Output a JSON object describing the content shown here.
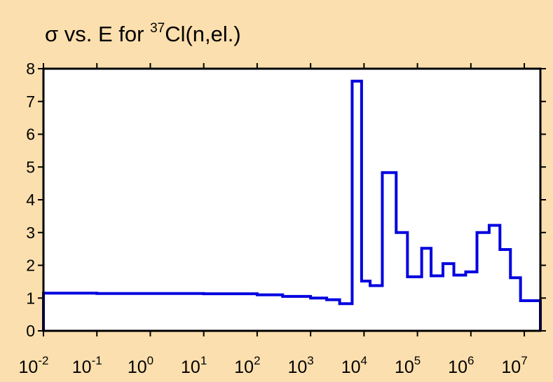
{
  "chart_data": {
    "type": "line",
    "title": {
      "prefix": "σ vs. E for ",
      "superscript": "37",
      "suffix": "Cl(n,el.)"
    },
    "xlabel": "",
    "ylabel": "",
    "x_scale": "log",
    "xlim": [
      0.01,
      20000000
    ],
    "ylim": [
      0,
      8
    ],
    "y_ticks": [
      "0",
      "1",
      "2",
      "3",
      "4",
      "5",
      "6",
      "7",
      "8"
    ],
    "x_ticks": [
      {
        "base": "10",
        "exp": "-2"
      },
      {
        "base": "10",
        "exp": "-1"
      },
      {
        "base": "10",
        "exp": "0"
      },
      {
        "base": "10",
        "exp": "1"
      },
      {
        "base": "10",
        "exp": "2"
      },
      {
        "base": "10",
        "exp": "3"
      },
      {
        "base": "10",
        "exp": "4"
      },
      {
        "base": "10",
        "exp": "5"
      },
      {
        "base": "10",
        "exp": "6"
      },
      {
        "base": "10",
        "exp": "7"
      }
    ],
    "grid": false,
    "series": [
      {
        "style": "step",
        "color": "#0000E0",
        "steps": [
          {
            "x0": 0.01,
            "x1": 0.1,
            "y": 1.15
          },
          {
            "x0": 0.1,
            "x1": 1,
            "y": 1.14
          },
          {
            "x0": 1,
            "x1": 10,
            "y": 1.14
          },
          {
            "x0": 10,
            "x1": 100,
            "y": 1.13
          },
          {
            "x0": 100,
            "x1": 300,
            "y": 1.1
          },
          {
            "x0": 300,
            "x1": 1000,
            "y": 1.05
          },
          {
            "x0": 1000,
            "x1": 2000,
            "y": 1.0
          },
          {
            "x0": 2000,
            "x1": 3500,
            "y": 0.95
          },
          {
            "x0": 3500,
            "x1": 6000,
            "y": 0.83
          },
          {
            "x0": 6000,
            "x1": 9000,
            "y": 7.62
          },
          {
            "x0": 9000,
            "x1": 13000,
            "y": 1.52
          },
          {
            "x0": 13000,
            "x1": 22000,
            "y": 1.38
          },
          {
            "x0": 22000,
            "x1": 40000,
            "y": 4.83
          },
          {
            "x0": 40000,
            "x1": 65000,
            "y": 3.0
          },
          {
            "x0": 65000,
            "x1": 120000,
            "y": 1.65
          },
          {
            "x0": 120000,
            "x1": 180000,
            "y": 2.52
          },
          {
            "x0": 180000,
            "x1": 300000,
            "y": 1.68
          },
          {
            "x0": 300000,
            "x1": 480000,
            "y": 2.05
          },
          {
            "x0": 480000,
            "x1": 800000,
            "y": 1.7
          },
          {
            "x0": 800000,
            "x1": 1300000,
            "y": 1.8
          },
          {
            "x0": 1300000,
            "x1": 2200000,
            "y": 3.0
          },
          {
            "x0": 2200000,
            "x1": 3500000,
            "y": 3.22
          },
          {
            "x0": 3500000,
            "x1": 5500000,
            "y": 2.48
          },
          {
            "x0": 5500000,
            "x1": 8500000,
            "y": 1.62
          },
          {
            "x0": 8500000,
            "x1": 20000000,
            "y": 0.92
          }
        ]
      }
    ]
  }
}
